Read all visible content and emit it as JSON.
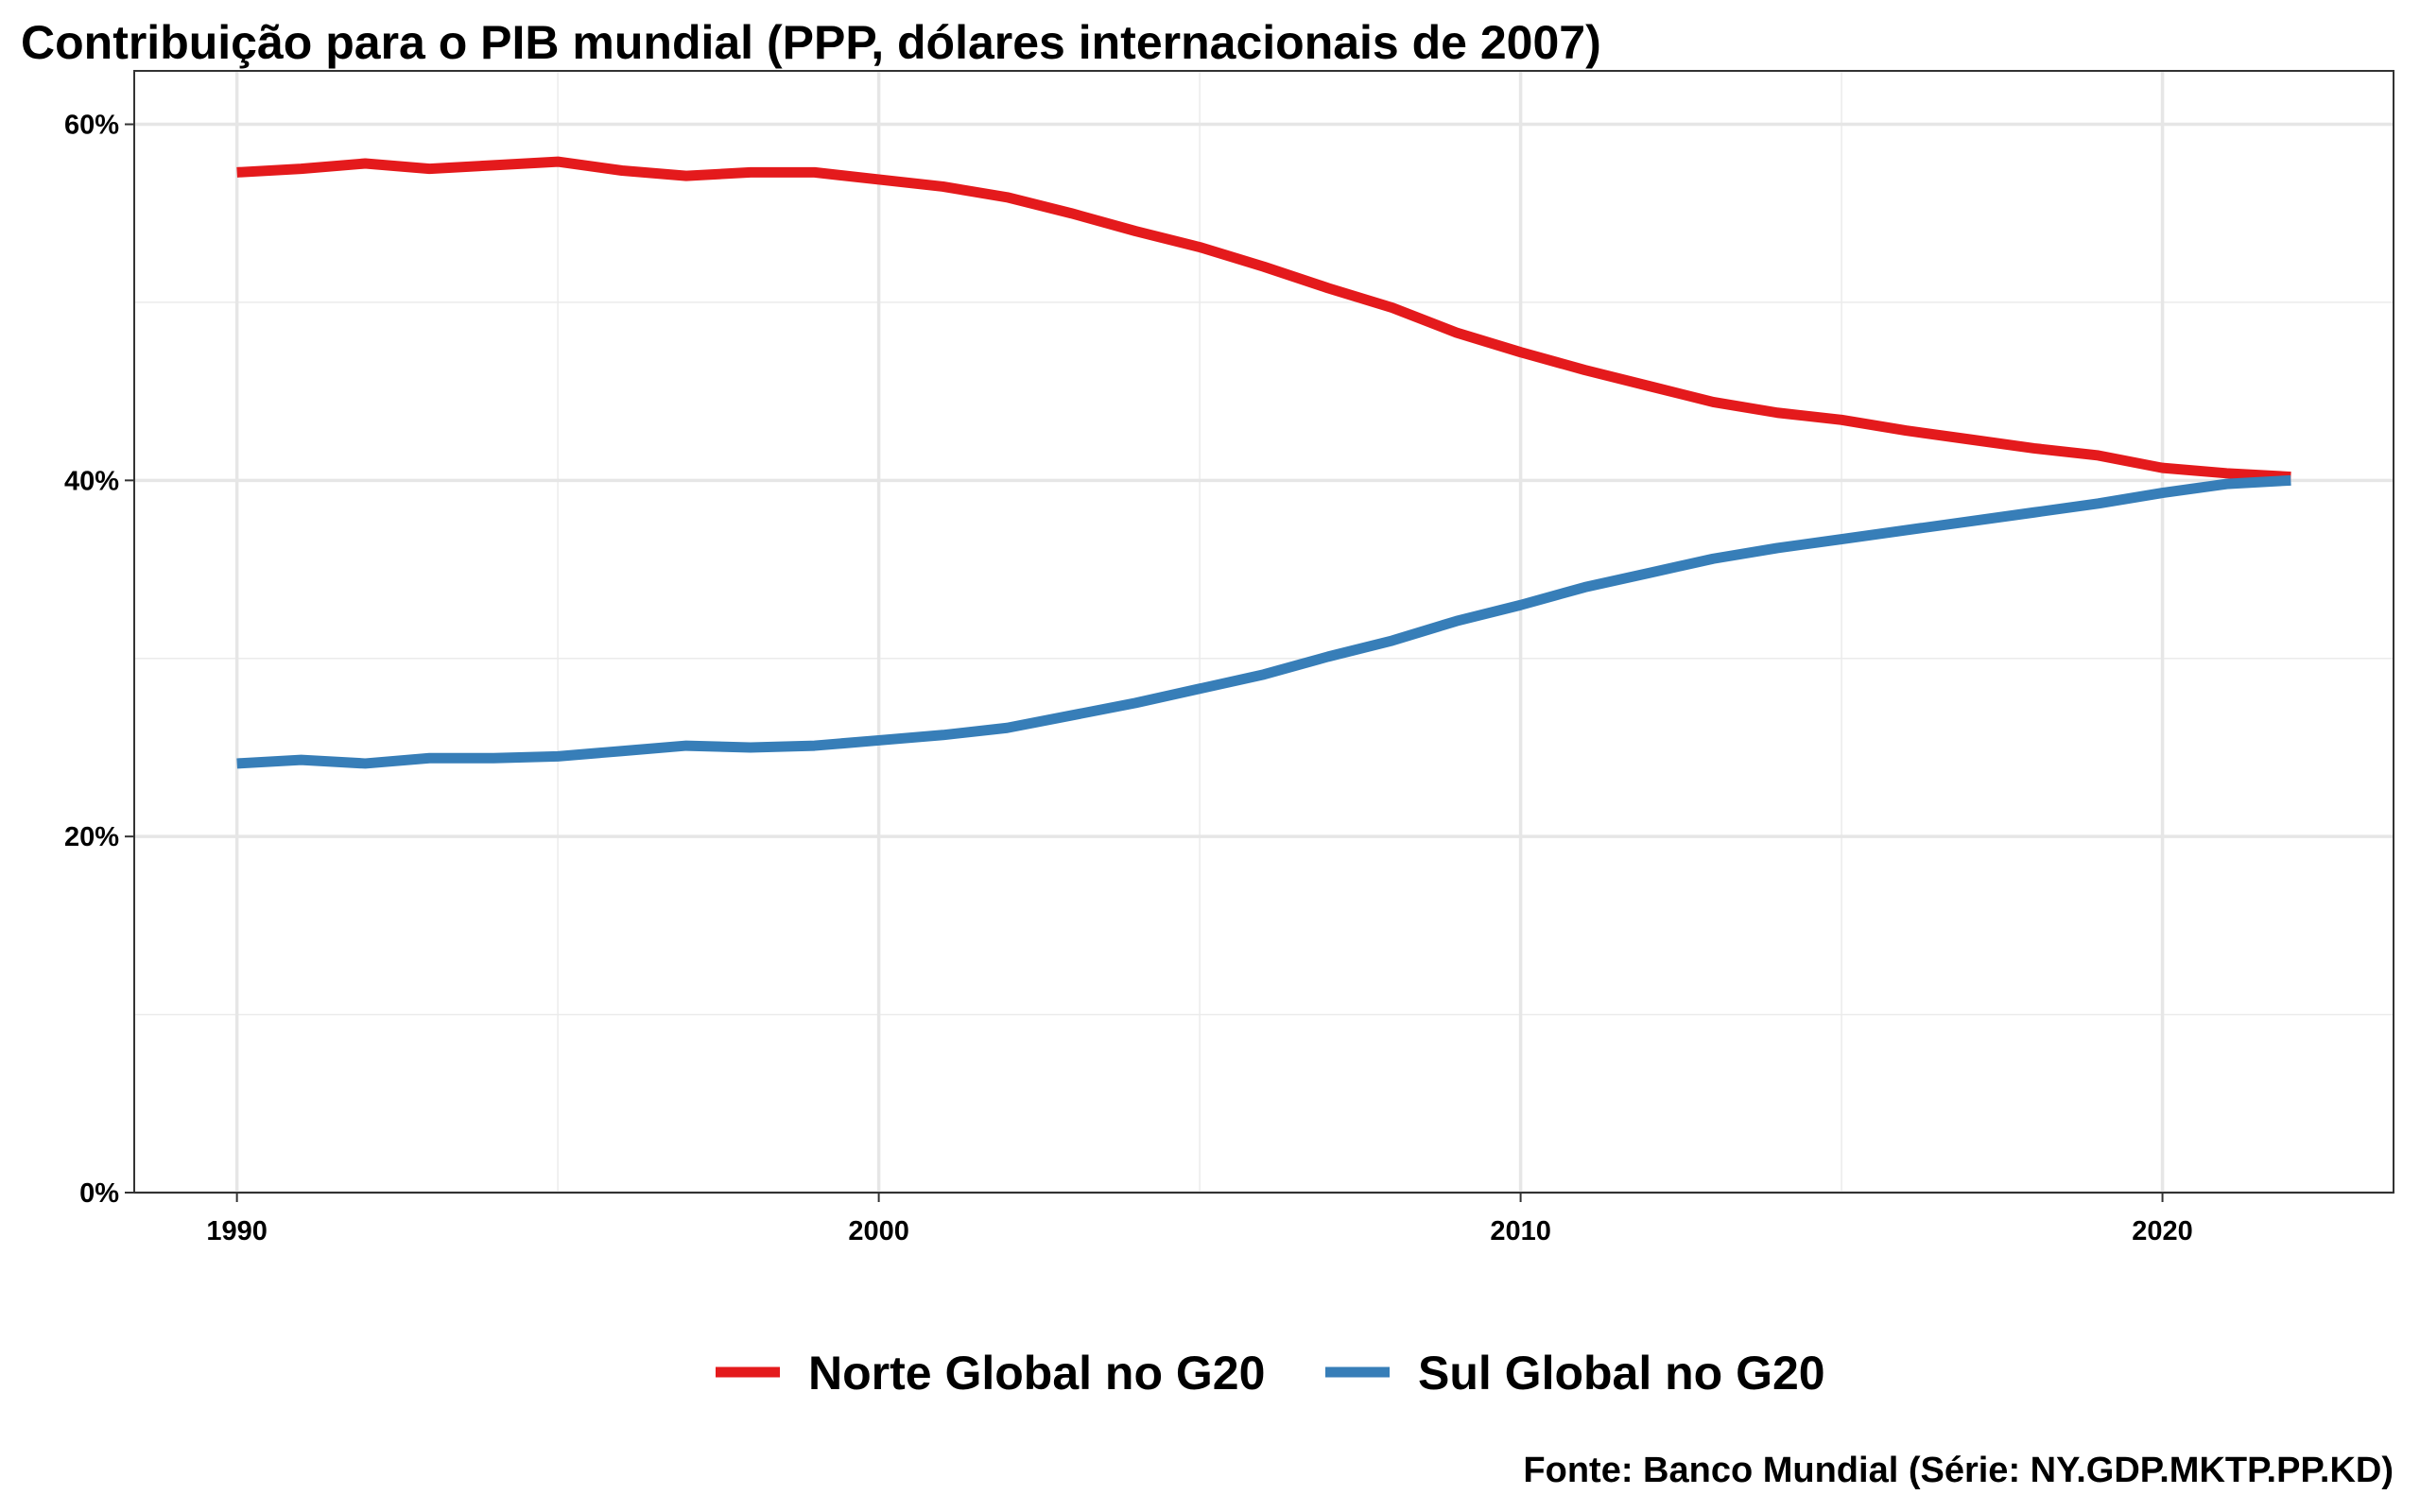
{
  "chart_data": {
    "type": "line",
    "title": "Contribuição para o PIB mundial (PPP, dólares internacionais de 2007)",
    "caption": "Fonte: Banco Mundial (Série: NY.GDP.MKTP.PP.KD)",
    "xlabel": "",
    "ylabel": "",
    "xlim": [
      1988.4,
      2023.6
    ],
    "ylim": [
      0,
      63
    ],
    "x_ticks": [
      1990,
      2000,
      2010,
      2020
    ],
    "x_tick_labels": [
      "1990",
      "2000",
      "2010",
      "2020"
    ],
    "y_ticks": [
      0,
      20,
      40,
      60
    ],
    "y_tick_labels": [
      "0%",
      "20%",
      "40%",
      "60%"
    ],
    "y_minor_ticks": [
      10,
      30,
      50
    ],
    "x_minor_ticks": [
      1995,
      2005,
      2015
    ],
    "grid": true,
    "legend_position": "bottom",
    "x": [
      1990,
      1991,
      1992,
      1993,
      1994,
      1995,
      1996,
      1997,
      1998,
      1999,
      2000,
      2001,
      2002,
      2003,
      2004,
      2005,
      2006,
      2007,
      2008,
      2009,
      2010,
      2011,
      2012,
      2013,
      2014,
      2015,
      2016,
      2017,
      2018,
      2019,
      2020,
      2021,
      2022
    ],
    "series": [
      {
        "name": "Norte Global no G20",
        "color": "#e41a1c",
        "values": [
          57.3,
          57.5,
          57.8,
          57.5,
          57.7,
          57.9,
          57.4,
          57.1,
          57.3,
          57.3,
          56.9,
          56.5,
          55.9,
          55.0,
          54.0,
          53.1,
          52.0,
          50.8,
          49.7,
          48.3,
          47.2,
          46.2,
          45.3,
          44.4,
          43.8,
          43.4,
          42.8,
          42.3,
          41.8,
          41.4,
          40.7,
          40.4,
          40.2
        ]
      },
      {
        "name": "Sul Global no G20",
        "color": "#377eb8",
        "values": [
          24.1,
          24.3,
          24.1,
          24.4,
          24.4,
          24.5,
          24.8,
          25.1,
          25.0,
          25.1,
          25.4,
          25.7,
          26.1,
          26.8,
          27.5,
          28.3,
          29.1,
          30.1,
          31.0,
          32.1,
          33.0,
          34.0,
          34.8,
          35.6,
          36.2,
          36.7,
          37.2,
          37.7,
          38.2,
          38.7,
          39.3,
          39.8,
          40.0
        ]
      }
    ]
  }
}
